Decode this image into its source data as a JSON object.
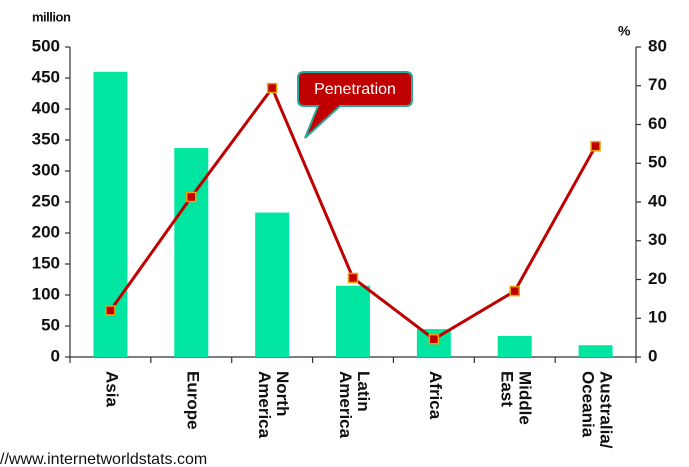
{
  "chart_data": {
    "type": "bar",
    "y_axis_label": "million",
    "y2_axis_label": "%",
    "categories": [
      "Asia",
      "Europe",
      "North America",
      "Latin America",
      "Africa",
      "Middle East",
      "Australia/ Oceania"
    ],
    "series": [
      {
        "color": "#00e6a0",
        "values": [
          460,
          337,
          233,
          115,
          45,
          34,
          19
        ]
      },
      {
        "name": "Penetration",
        "type": "line",
        "axis": "y2",
        "color": "#c00000",
        "values": [
          12,
          41.3,
          69.4,
          20.4,
          4.6,
          17,
          54.4
        ]
      }
    ],
    "ylim": [
      0,
      500
    ],
    "yticks": [
      0,
      50,
      100,
      150,
      200,
      250,
      300,
      350,
      400,
      450,
      500
    ],
    "y2lim": [
      0,
      80
    ],
    "y2ticks": [
      0,
      10,
      20,
      30,
      40,
      50,
      60,
      70,
      80
    ],
    "source": "//www.internetworldstats.com"
  }
}
